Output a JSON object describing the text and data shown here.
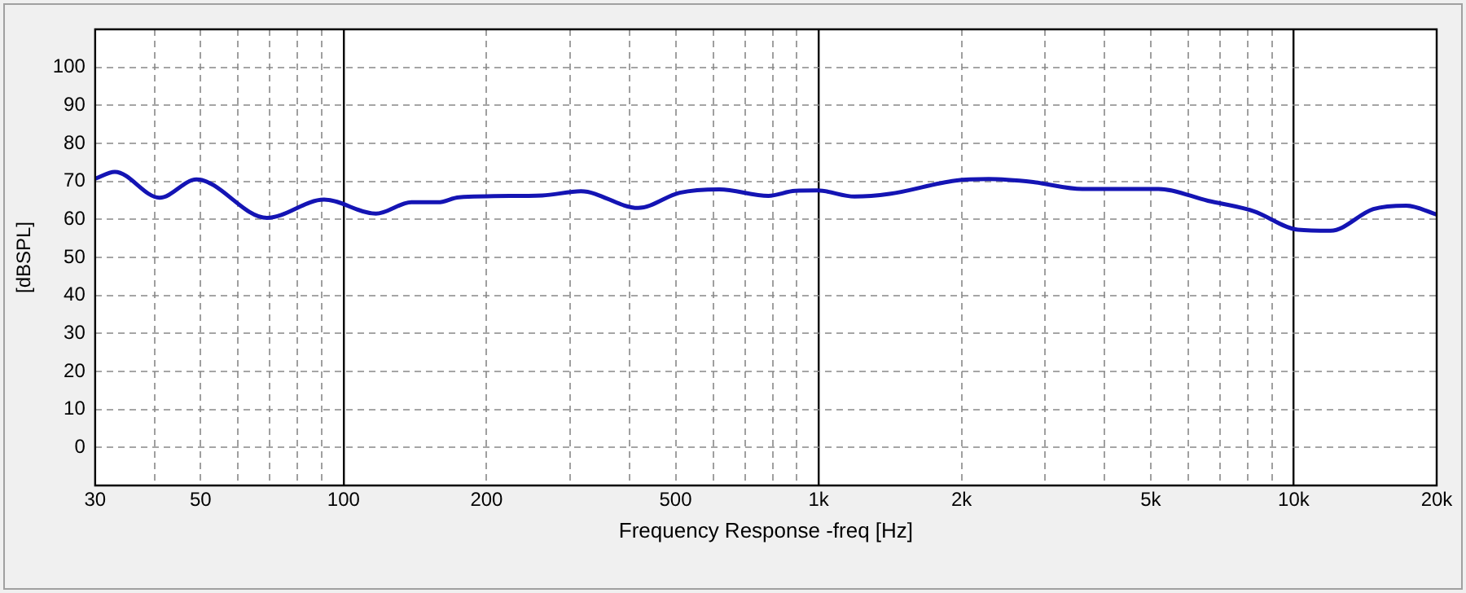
{
  "chart_data": {
    "type": "line",
    "xlabel": "Frequency Response -freq [Hz]",
    "ylabel": "[dBSPL]",
    "log": "x",
    "xlim": [
      30,
      20000
    ],
    "ylim": [
      -10,
      110
    ],
    "xticks": [
      30,
      {
        "value": 40,
        "label": null
      },
      50,
      {
        "value": 60,
        "label": null
      },
      {
        "value": 70,
        "label": null
      },
      {
        "value": 80,
        "label": null
      },
      {
        "value": 90,
        "label": null
      },
      100,
      200,
      {
        "value": 300,
        "label": null
      },
      {
        "value": 400,
        "label": null
      },
      500,
      {
        "value": 600,
        "label": null
      },
      {
        "value": 700,
        "label": null
      },
      {
        "value": 800,
        "label": null
      },
      {
        "value": 900,
        "label": null
      },
      {
        "value": 1000,
        "label": "1k"
      },
      {
        "value": 2000,
        "label": "2k"
      },
      {
        "value": 3000,
        "label": null
      },
      {
        "value": 4000,
        "label": null
      },
      {
        "value": 5000,
        "label": "5k"
      },
      {
        "value": 6000,
        "label": null
      },
      {
        "value": 7000,
        "label": null
      },
      {
        "value": 8000,
        "label": null
      },
      {
        "value": 9000,
        "label": null
      },
      {
        "value": 10000,
        "label": "10k"
      },
      {
        "value": 20000,
        "label": "20k"
      }
    ],
    "yticks": [
      0,
      10,
      20,
      30,
      40,
      50,
      60,
      70,
      80,
      90,
      100
    ],
    "grid": true,
    "legend": false,
    "marker": "none",
    "line_style": "solid",
    "series": [
      {
        "color": "#1414b4",
        "x": [
          30,
          33,
          41,
          49,
          69,
          91,
          117,
          139,
          158,
          175,
          262,
          316,
          417,
          510,
          618,
          784,
          892,
          995,
          1190,
          1410,
          1940,
          2280,
          2830,
          3590,
          5190,
          6600,
          8220,
          10200,
          11960,
          14720,
          17260,
          20000
        ],
        "values": [
          70.7,
          72.5,
          65.7,
          70.5,
          60.4,
          65.2,
          61.5,
          64.5,
          64.5,
          65.8,
          66.3,
          67.4,
          63,
          67,
          67.9,
          66.2,
          67.5,
          67.6,
          66,
          66.7,
          70.2,
          70.6,
          69.8,
          68,
          68,
          64.9,
          62.2,
          57.3,
          57,
          62.7,
          63.6,
          61.3
        ]
      }
    ]
  }
}
